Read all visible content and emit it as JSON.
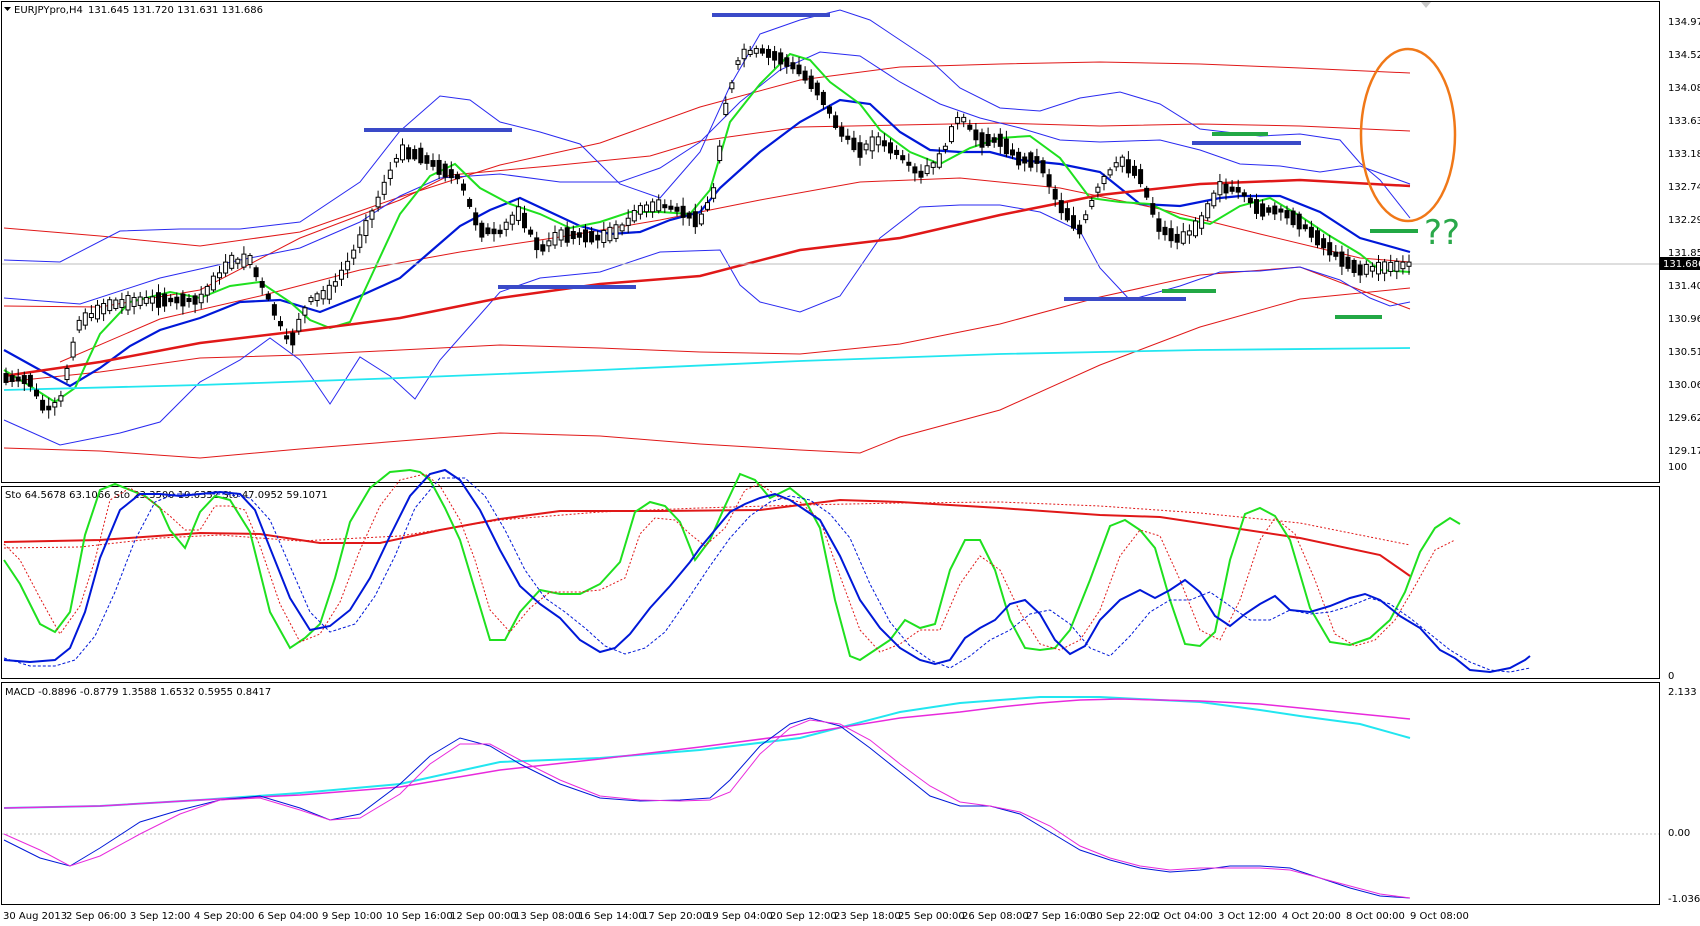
{
  "chart_data": [
    {
      "type": "candlestick",
      "panel": "price",
      "symbol_label": "EURJPYpro,H4",
      "ohlc_label": "131.645 131.720 131.631 131.686",
      "current_price": "131.686",
      "y_ticks": [
        "134.970",
        "134.520",
        "134.080",
        "133.630",
        "133.180",
        "132.740",
        "132.290",
        "131.850",
        "131.400",
        "130.960",
        "130.510",
        "130.060",
        "129.620",
        "129.170"
      ],
      "ylim": [
        128.9,
        135.35
      ],
      "annotation_text": "??",
      "colors": {
        "bull": "#ffffff",
        "bear": "#000000",
        "ma_blue": "#0018d8",
        "ma_green": "#1fe01f",
        "ma_red": "#e01818",
        "ma_cyan": "#22e6f0",
        "band_blue": "#2a2af0",
        "env_red": "#e01818",
        "ellipse": "#f07818",
        "level_blue": "#3a4ac8",
        "level_green": "#22a845"
      }
    },
    {
      "type": "line",
      "panel": "stochastic",
      "label": "Sto 64.5678 63.1066  Sto 23.3500 19.6352  Sto 47.0952 59.1071",
      "y_ticks": [
        "100",
        "0"
      ],
      "ylim": [
        0,
        100
      ]
    },
    {
      "type": "line",
      "panel": "macd",
      "label": "MACD -0.8896 -0.8779 1.3588 1.6532 0.5955 0.8417",
      "y_ticks": [
        "2.133",
        "0.00",
        "-1.0363"
      ],
      "ylim": [
        -1.0363,
        2.133
      ]
    }
  ],
  "x_ticks": [
    "30 Aug 2013",
    "2 Sep 06:00",
    "3 Sep 12:00",
    "4 Sep 20:00",
    "6 Sep 04:00",
    "9 Sep 10:00",
    "10 Sep 16:00",
    "12 Sep 00:00",
    "13 Sep 08:00",
    "16 Sep 14:00",
    "17 Sep 20:00",
    "19 Sep 04:00",
    "20 Sep 12:00",
    "23 Sep 18:00",
    "25 Sep 00:00",
    "26 Sep 08:00",
    "27 Sep 16:00",
    "30 Sep 22:00",
    "2 Oct 04:00",
    "3 Oct 12:00",
    "4 Oct 20:00",
    "8 Oct 00:00",
    "9 Oct 08:00"
  ]
}
